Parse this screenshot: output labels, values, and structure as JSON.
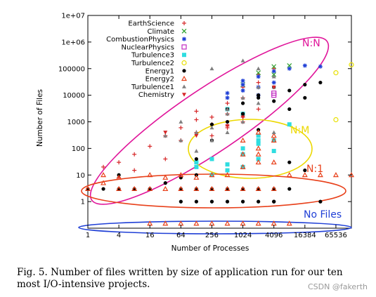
{
  "chart_data": {
    "type": "scatter",
    "title": "",
    "xlabel": "Number of Processes",
    "ylabel": "Number of Files",
    "xscale": "log2",
    "yscale": "log10",
    "xlim": [
      1,
      131072
    ],
    "ylim": [
      0.1,
      10000000
    ],
    "x_ticks": [
      {
        "value": 1,
        "label": "1"
      },
      {
        "value": 4,
        "label": "4"
      },
      {
        "value": 16,
        "label": "16"
      },
      {
        "value": 64,
        "label": "64"
      },
      {
        "value": 256,
        "label": "256"
      },
      {
        "value": 1024,
        "label": "1024"
      },
      {
        "value": 4096,
        "label": "4096"
      },
      {
        "value": 16384,
        "label": "16384"
      },
      {
        "value": 65536,
        "label": "65536"
      }
    ],
    "y_ticks": [
      {
        "value": 1,
        "label": "1"
      },
      {
        "value": 10,
        "label": "10"
      },
      {
        "value": 100,
        "label": "100"
      },
      {
        "value": 1000,
        "label": "1000"
      },
      {
        "value": 10000,
        "label": "10000"
      },
      {
        "value": 100000,
        "label": "100000"
      },
      {
        "value": 1000000,
        "label": "1e+06"
      },
      {
        "value": 10000000,
        "label": "1e+07"
      }
    ],
    "legend_position": "top-left",
    "series": [
      {
        "name": "EarthScience",
        "marker": "plus",
        "color": "#d62728",
        "x": [
          2,
          4,
          8,
          16,
          32,
          64,
          128,
          128,
          256,
          256,
          512,
          512,
          1024,
          1024,
          2048,
          2048,
          4096,
          8,
          64,
          128,
          512,
          1024,
          2048,
          256,
          512,
          1024,
          4,
          32
        ],
        "y": [
          20,
          30,
          60,
          120,
          300,
          600,
          1200,
          2500,
          800,
          1500,
          2000,
          5000,
          8000,
          20000,
          30000,
          60000,
          100000,
          15,
          200,
          400,
          600,
          1000,
          3000,
          300,
          700,
          1500,
          8,
          40
        ]
      },
      {
        "name": "Climate",
        "marker": "x",
        "color": "#2ca02c",
        "x": [
          2048,
          4096,
          4096,
          8192,
          1024
        ],
        "y": [
          70000,
          120000,
          60000,
          130000,
          25000
        ]
      },
      {
        "name": "CombustionPhysics",
        "marker": "star",
        "color": "#1f3fd6",
        "x": [
          512,
          512,
          1024,
          1024,
          2048,
          2048,
          4096,
          4096,
          8192,
          16384,
          32768,
          1024,
          2048
        ],
        "y": [
          8000,
          12000,
          15000,
          25000,
          20000,
          50000,
          30000,
          80000,
          100000,
          130000,
          120000,
          35000,
          10000
        ]
      },
      {
        "name": "NuclearPhysics",
        "marker": "square-open",
        "color": "#c22bc2",
        "x": [
          4096,
          4096
        ],
        "y": [
          10000,
          12000
        ]
      },
      {
        "name": "Turbulence3",
        "marker": "square",
        "color": "#2fdde0",
        "x": [
          128,
          128,
          256,
          256,
          512,
          512,
          1024,
          1024,
          1024,
          2048,
          2048,
          2048,
          2048,
          4096,
          4096,
          512,
          1024,
          8192
        ],
        "y": [
          20,
          30,
          10,
          40,
          15,
          25,
          20,
          60,
          100,
          150,
          200,
          300,
          40,
          80,
          200,
          3000,
          2000,
          800
        ]
      },
      {
        "name": "Turbulence2",
        "marker": "circle-open",
        "color": "#e8e000",
        "x": [
          65536,
          131072,
          65536
        ],
        "y": [
          70000,
          140000,
          1200
        ]
      },
      {
        "name": "Energy1",
        "marker": "circle",
        "color": "#000000",
        "x": [
          1,
          2,
          4,
          8,
          16,
          32,
          64,
          128,
          128,
          256,
          256,
          512,
          512,
          1024,
          1024,
          2048,
          2048,
          4096,
          4096,
          8192,
          8192,
          16384,
          16384,
          32768,
          32768,
          4,
          16,
          64,
          128,
          256,
          512,
          1024,
          2048,
          4096,
          8192,
          64,
          128,
          256,
          512,
          1024,
          2048,
          4096,
          4096,
          2048,
          8192,
          16384
        ],
        "y": [
          3,
          3,
          3,
          3,
          3,
          5,
          8,
          10,
          40,
          200,
          800,
          1000,
          3000,
          2000,
          5000,
          8000,
          10000,
          6000,
          20000,
          15000,
          3000,
          25000,
          8000,
          30000,
          1,
          10,
          3,
          3,
          3,
          3,
          3,
          3,
          3,
          3,
          3,
          1,
          1,
          1,
          1,
          1,
          1,
          1,
          1,
          500,
          30,
          15
        ]
      },
      {
        "name": "Energy2",
        "marker": "triangle-open",
        "color": "#e8401a",
        "x": [
          1,
          2,
          2,
          4,
          4,
          8,
          16,
          16,
          32,
          32,
          64,
          64,
          128,
          128,
          256,
          256,
          512,
          512,
          1024,
          1024,
          1024,
          2048,
          2048,
          2048,
          4096,
          4096,
          4096,
          8192,
          16384,
          32768,
          65536,
          131072,
          16,
          32,
          64,
          128,
          256,
          512,
          1024,
          2048,
          4096,
          8192,
          2048,
          4096,
          1024,
          2048
        ],
        "y": [
          3,
          5,
          10,
          3,
          8,
          3,
          3,
          10,
          3,
          8,
          3,
          10,
          3,
          8,
          3,
          10,
          3,
          10,
          3,
          20,
          60,
          3,
          30,
          100,
          3,
          30,
          200,
          10,
          10,
          10,
          10,
          10,
          0.15,
          0.15,
          0.15,
          0.15,
          0.15,
          0.15,
          0.15,
          0.15,
          0.15,
          0.15,
          400,
          300,
          200,
          60
        ]
      },
      {
        "name": "Turbulence1",
        "marker": "triangle",
        "color": "#7f7f7f",
        "x": [
          32,
          64,
          64,
          128,
          128,
          256,
          256,
          512,
          512,
          1024,
          1024,
          2048,
          2048,
          4096,
          4096,
          256,
          512,
          1024,
          2048,
          4096
        ],
        "y": [
          300,
          200,
          1000,
          80,
          400,
          200,
          100000,
          400,
          2000,
          1000,
          200000,
          5000,
          100000,
          400,
          20000,
          600,
          3000,
          8000,
          20000,
          50000
        ]
      },
      {
        "name": "Chemistry",
        "marker": "triangle-down",
        "color": "#d62728",
        "x": [
          32,
          128,
          512,
          1024,
          4096
        ],
        "y": [
          400,
          300,
          700,
          1500,
          20000
        ]
      }
    ],
    "annotations": [
      {
        "label": "N:N",
        "color": "#e0159a"
      },
      {
        "label": "N:M",
        "color": "#ecd800"
      },
      {
        "label": "N:1",
        "color": "#e8401a"
      },
      {
        "label": "No Files",
        "color": "#1f3fd6"
      }
    ]
  },
  "caption": "Fig. 5.   Number of files written by size of application run for our ten most I/O-intensive projects.",
  "watermark": "CSDN @fakerth"
}
